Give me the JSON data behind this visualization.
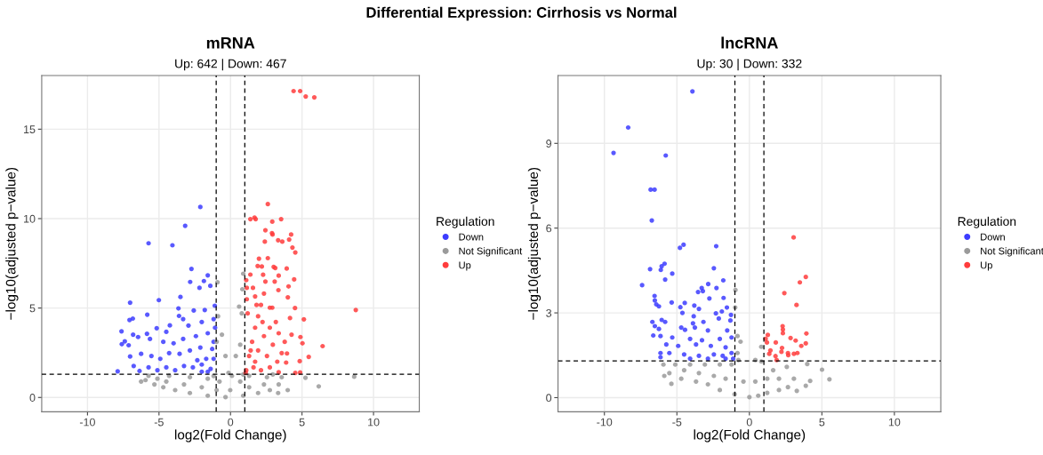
{
  "chart_data": [
    {
      "type": "scatter",
      "title": "mRNA",
      "subtitle": "Up: 642 | Down: 467",
      "annotations": [
        "Differential Expression: Cirrhosis vs Normal"
      ],
      "xlabel": "log2(Fold Change)",
      "ylabel": "−log10(adjusted p−value)",
      "legend_title": "Regulation",
      "legend": "right",
      "grid": true,
      "marker": "circle",
      "xlim": [
        -13.2,
        13.2
      ],
      "ylim": [
        -0.8,
        18
      ],
      "xticks": [
        -10,
        -5,
        0,
        5,
        10
      ],
      "yticks": [
        0,
        5,
        10,
        15
      ],
      "ref_lines": [
        {
          "axis": "x",
          "value": -1,
          "line_style": "dashed",
          "color": "#000000"
        },
        {
          "axis": "x",
          "value": 1,
          "line_style": "dashed",
          "color": "#000000"
        },
        {
          "axis": "y",
          "value": 1.3,
          "line_style": "dashed",
          "color": "#000000"
        }
      ],
      "series": [
        {
          "name": "Down",
          "color": "#3c3cff",
          "x": [
            -2.11,
            -3.17,
            -5.73,
            -4.06,
            -2.73,
            -1.59,
            -2.82,
            -1.86,
            -2.17,
            -1.41,
            -3.5,
            -5.01,
            -7.02,
            -3.64,
            -5.82,
            -2.57,
            -1.8,
            -1.1,
            -7.06,
            -6.83,
            -3.6,
            -3.31,
            -5.16,
            -7.62,
            -6.81,
            -5.84,
            -4.49,
            -4.24,
            -2.94,
            -2.01,
            -1.18,
            -7.39,
            -7.6,
            -7.12,
            -6.46,
            -5.63,
            -4.7,
            -3.98,
            -3.31,
            -2.42,
            -1.59,
            -7.02,
            -6.25,
            -5.53,
            -4.91,
            -4.29,
            -3.56,
            -2.84,
            -2.11,
            -1.28,
            -7.89,
            -6.77,
            -6.36,
            -5.73,
            -5.11,
            -4.49,
            -3.87,
            -3.25,
            -2.63,
            -2.01,
            -1.39,
            -1.18,
            -1.7,
            -2.32,
            -1.59,
            -1.18,
            -1.08,
            -2.01
          ],
          "values": [
            10.65,
            9.6,
            8.62,
            8.51,
            7.19,
            6.83,
            6.46,
            6.51,
            6.13,
            6.24,
            5.62,
            5.44,
            5.3,
            4.98,
            4.63,
            4.86,
            4.89,
            5.13,
            4.33,
            4.41,
            4.56,
            4.38,
            3.87,
            3.7,
            3.51,
            3.56,
            3.67,
            4.03,
            4.02,
            4.22,
            4.38,
            3.14,
            2.98,
            2.92,
            3.38,
            3.27,
            3.11,
            3.03,
            3.27,
            3.43,
            3.59,
            2.29,
            2.44,
            2.32,
            2.16,
            2.48,
            2.44,
            2.63,
            2.79,
            2.71,
            1.46,
            1.76,
            1.48,
            1.68,
            1.52,
            1.68,
            1.52,
            1.76,
            1.68,
            1.84,
            1.6,
            2.16,
            2.16,
            2.08,
            1.44,
            3.11,
            3.9,
            1.44
          ]
        },
        {
          "name": "Not Significant",
          "color": "#9a9a9a",
          "x": [
            -0.91,
            -0.87,
            0.89,
            0.83,
            0.6,
            0.79,
            -0.6,
            -0.97,
            0.68,
            -0.35,
            0.37,
            -0.14,
            0.1,
            -0.02,
            -1.18,
            0.89,
            -6.25,
            -5.94,
            -5.32,
            -4.7,
            -3.87,
            -2.84,
            -1.59,
            -0.35,
            0.89,
            1.93,
            2.75,
            3.37,
            3.33,
            4.0,
            5.24,
            6.17,
            8.65,
            -5.73,
            -4.29,
            -2.84,
            -1.59,
            -3.25,
            -2.01,
            -0.97,
            1.3,
            2.55,
            2.96,
            3.58,
            1.3,
            2.34,
            -0.77,
            0.68,
            -4.49,
            -5.11
          ],
          "values": [
            6.44,
            4.54,
            6.92,
            6.05,
            5.08,
            4.7,
            3.51,
            3.11,
            2.95,
            2.32,
            2.32,
            1.37,
            1.21,
            0.41,
            1.2,
            1.29,
            0.89,
            0.97,
            0.73,
            0.57,
            0.41,
            0.25,
            0.1,
            0.02,
            0.1,
            0.25,
            0.41,
            0.73,
            0.25,
            0.41,
            1.1,
            0.62,
            1.16,
            1.21,
            1.21,
            1.13,
            1.05,
            0.73,
            0.57,
            0.41,
            1.21,
            1.13,
            1.29,
            1.13,
            0.57,
            0.73,
            0.89,
            0.89,
            0.89,
            1.05
          ]
        },
        {
          "name": "Up",
          "color": "#ff3c3c",
          "x": [
            4.41,
            4.87,
            5.26,
            5.86,
            2.61,
            1.39,
            1.68,
            1.76,
            2.92,
            3.54,
            2.44,
            2.9,
            2.94,
            3.33,
            3.62,
            4.24,
            4.1,
            4.33,
            4.53,
            2.4,
            1.99,
            2.61,
            1.9,
            2.19,
            3.02,
            3.13,
            3.93,
            1.39,
            2.28,
            3.37,
            4.45,
            1.1,
            2.44,
            3.09,
            4.06,
            1.57,
            3.35,
            4.01,
            1.72,
            4.51,
            2.92,
            8.76,
            5.13,
            4.16,
            4.89,
            4.27,
            6.44,
            5.03,
            5.47,
            3.95,
            4.84,
            3.89,
            4.53,
            4.87,
            3.37,
            1.1,
            1.3,
            1.51,
            1.72,
            1.93,
            2.13,
            2.34,
            1.2,
            1.14,
            1.14,
            1.61,
            2.13,
            2.75,
            2.55,
            2.96,
            3.37,
            2.75,
            3.17,
            2.34,
            1.93,
            1.72,
            3.58,
            3.79,
            3.27,
            1.41,
            2.24,
            1.82,
            2.75,
            1.06
          ],
          "values": [
            17.13,
            17.13,
            16.83,
            16.78,
            10.81,
            9.97,
            10.06,
            9.97,
            9.83,
            9.97,
            9.35,
            9.19,
            9.11,
            8.79,
            8.71,
            9.11,
            8.83,
            8.38,
            8.11,
            8.71,
            7.76,
            7.79,
            7.35,
            7.32,
            7.3,
            7.24,
            7.21,
            6.87,
            6.86,
            6.81,
            6.6,
            6.56,
            6.48,
            6.48,
            6.21,
            6.13,
            6.0,
            5.6,
            5.65,
            5.0,
            5.02,
            4.89,
            4.37,
            4.44,
            3.38,
            3.51,
            2.87,
            3.03,
            2.27,
            2.46,
            2.03,
            1.95,
            1.37,
            1.4,
            1.41,
            1.52,
            2.32,
            3.11,
            3.9,
            4.54,
            5.17,
            5.81,
            4.7,
            5.49,
            6.13,
            1.68,
            1.52,
            1.68,
            2.32,
            2.95,
            3.59,
            3.9,
            4.22,
            3.43,
            2.63,
            2.0,
            2.48,
            3.11,
            2.0,
            2.63,
            4.22,
            5.17,
            5.02,
            1.37
          ]
        }
      ]
    },
    {
      "type": "scatter",
      "title": "lncRNA",
      "subtitle": "Up: 30 | Down: 332",
      "xlabel": "log2(Fold Change)",
      "ylabel": "−log10(adjusted p−value)",
      "legend_title": "Regulation",
      "legend": "right",
      "grid": true,
      "marker": "circle",
      "xlim": [
        -13.2,
        13.2
      ],
      "ylim": [
        -0.5,
        11.4
      ],
      "xticks": [
        -10,
        -5,
        0,
        5,
        10
      ],
      "yticks": [
        0,
        3,
        6,
        9
      ],
      "ref_lines": [
        {
          "axis": "x",
          "value": -1,
          "line_style": "dashed",
          "color": "#000000"
        },
        {
          "axis": "x",
          "value": 1,
          "line_style": "dashed",
          "color": "#000000"
        },
        {
          "axis": "y",
          "value": 1.3,
          "line_style": "dashed",
          "color": "#000000"
        }
      ],
      "series": [
        {
          "name": "Down",
          "color": "#3c3cff",
          "x": [
            -3.93,
            -8.36,
            -9.37,
            -5.77,
            -6.81,
            -6.54,
            -6.73,
            -4.54,
            -4.79,
            -2.29,
            -6.85,
            -6.05,
            -5.85,
            -6.11,
            -5.32,
            -2.45,
            -5.81,
            -1.8,
            -7.4,
            -2.84,
            -3.29,
            -3.54,
            -3.21,
            -2.27,
            -6.54,
            -2.76,
            -1.78,
            -6.52,
            -5.36,
            -4.46,
            -6.42,
            -6.24,
            -4.76,
            -3.8,
            -3.48,
            -1.55,
            -1.9,
            -4.62,
            -3.84,
            -2.31,
            -1.27,
            -6.69,
            -6.05,
            -5.81,
            -3.17,
            -3.89,
            -2.11,
            -1.31,
            -6.52,
            -4.7,
            -3.76,
            -6.24,
            -6.63,
            -4.44,
            -2.86,
            -1.53,
            -6.13,
            -5.32,
            -4.09,
            -3.27,
            -2.04,
            -1.23,
            -5.73,
            -4.91,
            -3.68,
            -2.66,
            -1.64,
            -6.13,
            -5.52,
            -4.5,
            -3.48,
            -2.45,
            -1.84,
            -1.23,
            -6.13,
            -4.09,
            -2.86,
            -1.64,
            -1.12
          ],
          "values": [
            10.84,
            9.56,
            8.66,
            8.57,
            7.36,
            7.36,
            6.27,
            5.41,
            5.3,
            5.36,
            4.55,
            4.65,
            4.74,
            4.52,
            4.39,
            4.58,
            4.18,
            4.15,
            3.98,
            4.02,
            3.88,
            3.74,
            3.77,
            3.88,
            3.6,
            3.51,
            3.53,
            3.44,
            3.37,
            3.35,
            3.3,
            3.23,
            3.2,
            3.26,
            3.14,
            3.19,
            3.05,
            3.0,
            2.88,
            2.98,
            2.93,
            2.68,
            2.75,
            2.68,
            2.68,
            2.63,
            2.8,
            2.73,
            2.53,
            2.48,
            2.48,
            2.43,
            2.2,
            2.4,
            2.38,
            2.38,
            2.18,
            2.13,
            2.08,
            2.03,
            2.08,
            2.13,
            1.88,
            1.83,
            1.88,
            1.83,
            1.78,
            1.58,
            1.58,
            1.53,
            1.48,
            1.53,
            1.48,
            1.58,
            1.43,
            1.38,
            1.38,
            1.38,
            1.38
          ]
        },
        {
          "name": "Not Significant",
          "color": "#9a9a9a",
          "x": [
            -0.96,
            -0.98,
            -0.82,
            -0.61,
            0.82,
            -0.82,
            -0.76,
            0.41,
            0.82,
            3.99,
            5.01,
            5.52,
            4.19,
            2.58,
            3.07,
            3.89,
            3.27,
            -5.87,
            -5.38,
            -5.93,
            -5.11,
            -4.09,
            -3.07,
            -2.04,
            -1.23,
            -4.7,
            -3.68,
            -2.86,
            -2.04,
            -1.02,
            0.0,
            0.61,
            1.23,
            2.04,
            2.66,
            -5.52,
            -4.5,
            -3.48,
            -2.45,
            -1.64,
            -0.41,
            0.41,
            1.23,
            1.64,
            2.04
          ],
          "values": [
            3.81,
            3.19,
            2.18,
            1.98,
            1.8,
            1.58,
            1.33,
            1.33,
            1.28,
            1.19,
            0.99,
            0.65,
            0.59,
            1.09,
            0.67,
            0.42,
            0.24,
            0.77,
            0.49,
            1.17,
            1.17,
            1.17,
            1.17,
            1.17,
            1.17,
            0.67,
            0.57,
            0.47,
            0.27,
            0.12,
            0.02,
            0.07,
            0.17,
            0.27,
            0.37,
            0.87,
            0.97,
            0.87,
            0.77,
            0.67,
            0.57,
            0.57,
            0.67,
            0.97,
            0.67
          ]
        },
        {
          "name": "Up",
          "color": "#ff3c3c",
          "x": [
            3.05,
            3.89,
            3.48,
            2.41,
            3.25,
            2.29,
            2.31,
            2.31,
            3.93,
            1.27,
            1.12,
            2.84,
            3.19,
            1.21,
            1.82,
            3.89,
            3.58,
            1.45,
            2.25,
            2.21,
            1.37,
            1.8,
            2.66,
            2.68,
            3.07,
            3.31,
            1.88
          ],
          "values": [
            5.67,
            4.27,
            4.08,
            3.7,
            3.28,
            2.53,
            2.41,
            2.28,
            2.27,
            2.22,
            2.08,
            2.11,
            2.02,
            1.95,
            1.95,
            1.92,
            1.83,
            1.67,
            1.76,
            1.62,
            1.55,
            1.47,
            1.58,
            1.5,
            1.55,
            1.58,
            1.33
          ]
        }
      ]
    }
  ]
}
